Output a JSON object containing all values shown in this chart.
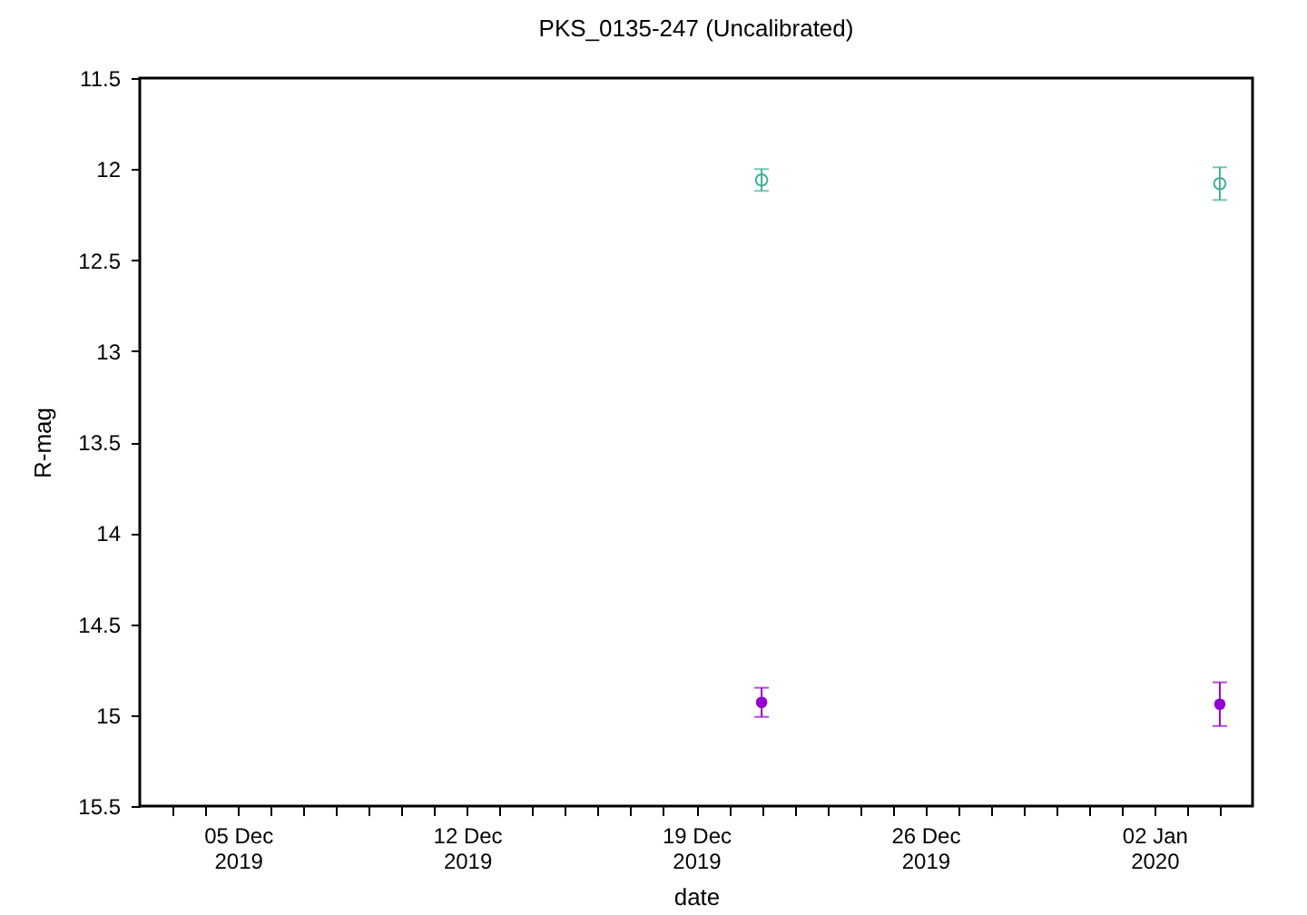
{
  "chart_data": {
    "type": "scatter",
    "title": "PKS_0135-247 (Uncalibrated)",
    "xlabel": "date",
    "ylabel": "R-mag",
    "x": [
      "2019-12-21",
      "2020-01-04"
    ],
    "series": [
      {
        "color": "#3cb38f",
        "marker": "circle",
        "values": [
          12.06,
          12.08
        ],
        "errors": [
          0.06,
          0.09
        ]
      },
      {
        "color": "#9400d3",
        "marker": "circle",
        "values": [
          14.93,
          14.94
        ],
        "errors": [
          0.08,
          0.12
        ]
      }
    ],
    "xlim": [
      "2019-12-02",
      "2020-01-05"
    ],
    "xticks": [
      {
        "value": "2019-12-03",
        "label": null
      },
      {
        "value": "2019-12-04",
        "label": null
      },
      {
        "value": "2019-12-05",
        "label": "05 Dec 2019"
      },
      {
        "value": "2019-12-06",
        "label": null
      },
      {
        "value": "2019-12-07",
        "label": null
      },
      {
        "value": "2019-12-08",
        "label": null
      },
      {
        "value": "2019-12-09",
        "label": null
      },
      {
        "value": "2019-12-10",
        "label": null
      },
      {
        "value": "2019-12-11",
        "label": null
      },
      {
        "value": "2019-12-12",
        "label": "12 Dec 2019"
      },
      {
        "value": "2019-12-13",
        "label": null
      },
      {
        "value": "2019-12-14",
        "label": null
      },
      {
        "value": "2019-12-15",
        "label": null
      },
      {
        "value": "2019-12-16",
        "label": null
      },
      {
        "value": "2019-12-17",
        "label": null
      },
      {
        "value": "2019-12-18",
        "label": null
      },
      {
        "value": "2019-12-19",
        "label": "19 Dec 2019"
      },
      {
        "value": "2019-12-20",
        "label": null
      },
      {
        "value": "2019-12-21",
        "label": null
      },
      {
        "value": "2019-12-22",
        "label": null
      },
      {
        "value": "2019-12-23",
        "label": null
      },
      {
        "value": "2019-12-24",
        "label": null
      },
      {
        "value": "2019-12-25",
        "label": null
      },
      {
        "value": "2019-12-26",
        "label": "26 Dec 2019"
      },
      {
        "value": "2019-12-27",
        "label": null
      },
      {
        "value": "2019-12-28",
        "label": null
      },
      {
        "value": "2019-12-29",
        "label": null
      },
      {
        "value": "2019-12-30",
        "label": null
      },
      {
        "value": "2019-12-31",
        "label": null
      },
      {
        "value": "2020-01-01",
        "label": null
      },
      {
        "value": "2020-01-02",
        "label": "02 Jan 2020"
      },
      {
        "value": "2020-01-03",
        "label": null
      },
      {
        "value": "2020-01-04",
        "label": null
      }
    ],
    "ylim": [
      15.5,
      11.5
    ],
    "yticks": [
      11.5,
      12,
      12.5,
      13,
      13.5,
      14,
      14.5,
      15,
      15.5
    ],
    "grid": false
  }
}
